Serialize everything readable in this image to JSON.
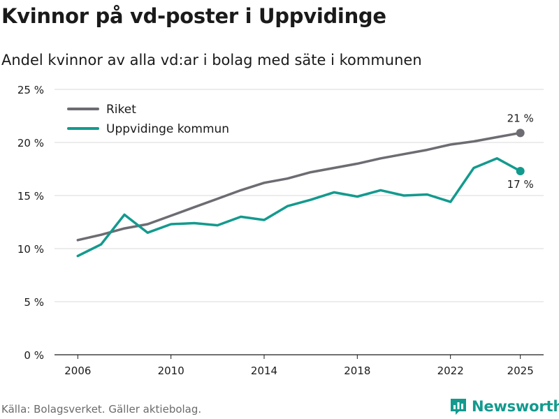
{
  "title": "Kvinnor på vd-poster i Uppvidinge",
  "subtitle": "Andel kvinnor av alla vd:ar i bolag med säte i kommunen",
  "source": "Källa: Bolagsverket. Gäller aktiebolag.",
  "brand": {
    "name": "Newsworthy",
    "color": "#139a8e"
  },
  "chart_data": {
    "type": "line",
    "x": [
      2006,
      2007,
      2008,
      2009,
      2010,
      2011,
      2012,
      2013,
      2014,
      2015,
      2016,
      2017,
      2018,
      2019,
      2020,
      2021,
      2022,
      2023,
      2024,
      2025
    ],
    "series": [
      {
        "name": "Riket",
        "color": "#6d6c72",
        "values": [
          10.8,
          11.3,
          11.9,
          12.3,
          13.1,
          13.9,
          14.7,
          15.5,
          16.2,
          16.6,
          17.2,
          17.6,
          18.0,
          18.5,
          18.9,
          19.3,
          19.8,
          20.1,
          20.5,
          20.9
        ],
        "end_label": "21 %"
      },
      {
        "name": "Uppvidinge kommun",
        "color": "#139a8e",
        "values": [
          9.3,
          10.4,
          13.2,
          11.5,
          12.3,
          12.4,
          12.2,
          13.0,
          12.7,
          14.0,
          14.6,
          15.3,
          14.9,
          15.5,
          15.0,
          15.1,
          14.4,
          17.6,
          18.5,
          17.3
        ],
        "end_label": "17 %"
      }
    ],
    "xticks": [
      2006,
      2010,
      2014,
      2018,
      2022,
      2025
    ],
    "yticks": [
      0,
      5,
      10,
      15,
      20,
      25
    ],
    "ytick_labels": [
      "0 %",
      "5 %",
      "10 %",
      "15 %",
      "20 %",
      "25 %"
    ],
    "ylim": [
      0,
      25
    ],
    "xlim": [
      2005,
      2026
    ],
    "grid": true,
    "legend_position": "top-left"
  }
}
